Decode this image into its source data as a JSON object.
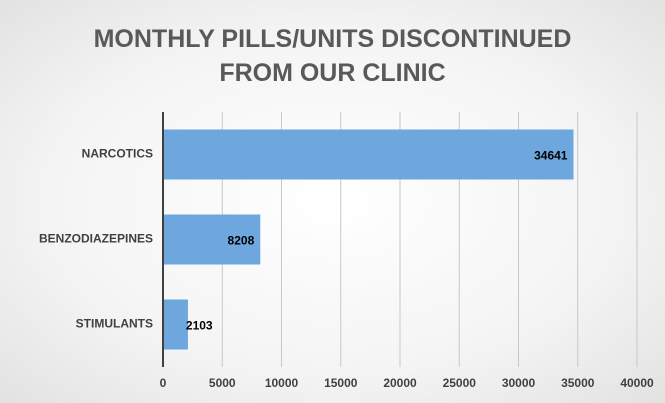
{
  "chart_data": {
    "type": "barh",
    "title": "MONTHLY PILLS/UNITS DISCONTINUED FROM OUR CLINIC",
    "categories": [
      "NARCOTICS",
      "BENZODIAZEPINES",
      "STIMULANTS"
    ],
    "values": [
      34641,
      8208,
      2103
    ],
    "color": "#6ea6de",
    "xlim": [
      0,
      40000
    ],
    "xticks": [
      0,
      5000,
      10000,
      15000,
      20000,
      25000,
      30000,
      35000,
      40000
    ],
    "grid": true
  }
}
